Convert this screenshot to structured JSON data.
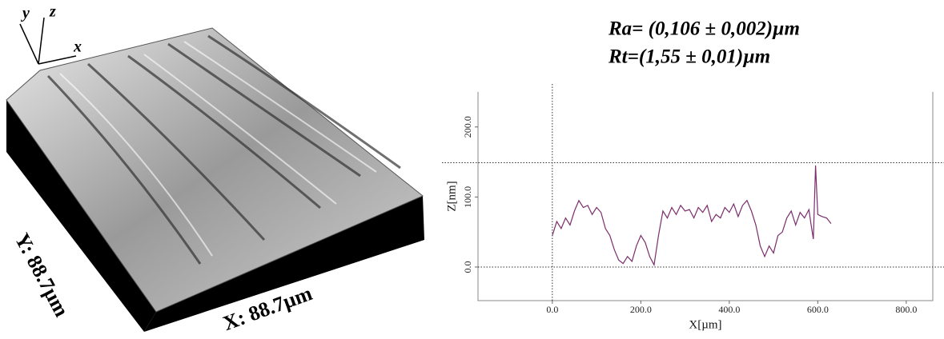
{
  "surface": {
    "axis_letters": [
      "y",
      "z",
      "x"
    ],
    "y_size": "Y: 88.7µm",
    "x_size": "X: 88.7µm"
  },
  "equations": [
    "Ra= (0,106 ± 0,002)µm",
    "Rt=(1,55 ± 0,01)µm"
  ],
  "chart_data": {
    "type": "line",
    "x_label": "X[µm]",
    "y_label": "Z[nm]",
    "x": [
      0,
      10,
      20,
      30,
      40,
      50,
      60,
      70,
      80,
      90,
      100,
      110,
      120,
      130,
      140,
      150,
      160,
      170,
      180,
      190,
      200,
      210,
      220,
      230,
      240,
      250,
      260,
      270,
      280,
      290,
      300,
      310,
      320,
      330,
      340,
      350,
      360,
      370,
      380,
      390,
      400,
      410,
      420,
      430,
      440,
      450,
      460,
      470,
      480,
      490,
      500,
      510,
      520,
      530,
      540,
      550,
      560,
      570,
      580,
      585,
      590,
      595,
      600,
      610,
      620,
      630
    ],
    "series": [
      {
        "color": "#7b2d6b",
        "values": [
          45,
          65,
          55,
          70,
          60,
          80,
          95,
          85,
          88,
          75,
          85,
          78,
          55,
          45,
          25,
          10,
          5,
          15,
          8,
          30,
          45,
          35,
          15,
          3,
          45,
          80,
          70,
          85,
          75,
          88,
          80,
          82,
          70,
          85,
          78,
          88,
          65,
          75,
          70,
          85,
          78,
          90,
          72,
          88,
          95,
          80,
          60,
          30,
          15,
          30,
          20,
          45,
          50,
          70,
          80,
          60,
          78,
          70,
          82,
          60,
          40,
          145,
          75,
          72,
          70,
          62
        ]
      }
    ],
    "xlim": [
      -168,
      860
    ],
    "ylim": [
      -48,
      250
    ],
    "xticks": [
      {
        "value": 0,
        "label": "0.0"
      },
      {
        "value": 200,
        "label": "200.0"
      },
      {
        "value": 400,
        "label": "400.0"
      },
      {
        "value": 600,
        "label": "600.0"
      },
      {
        "value": 800,
        "label": "800.0"
      }
    ],
    "yticks": [
      {
        "value": 0,
        "label": "0.0"
      },
      {
        "value": 100,
        "label": "100.0"
      },
      {
        "value": 200,
        "label": "200.0"
      }
    ],
    "ref_lines_y": [
      0,
      149
    ],
    "ref_line_x": 0
  }
}
